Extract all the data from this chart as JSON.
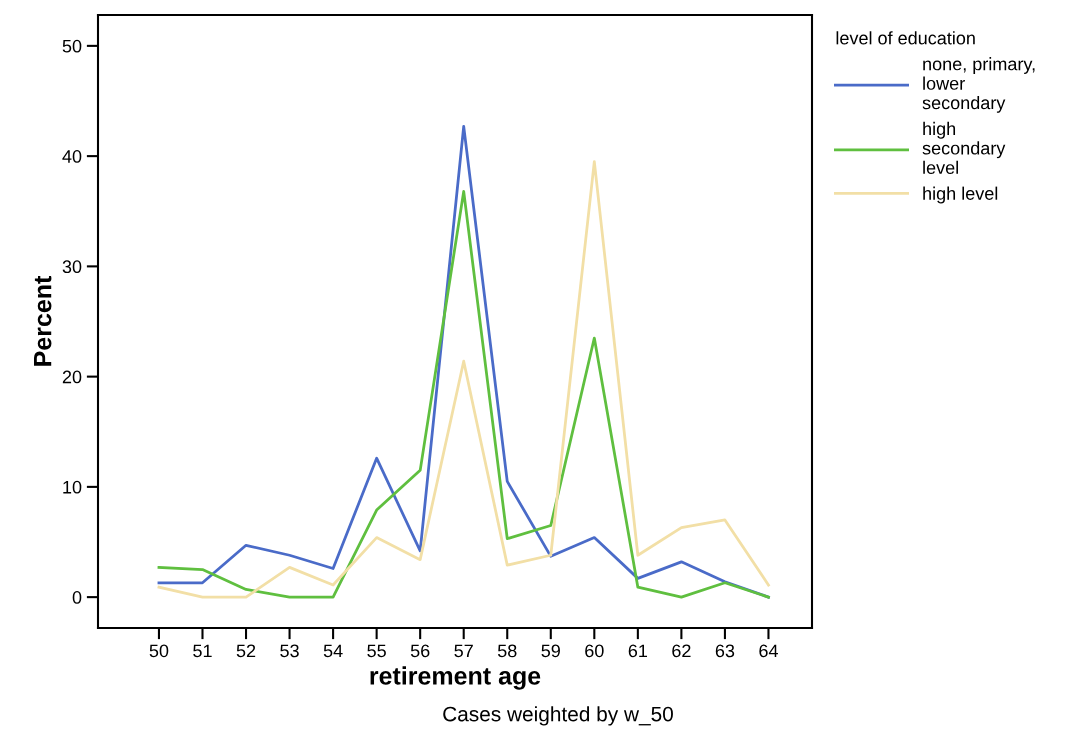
{
  "chart_data": {
    "type": "line",
    "xlabel": "retirement age",
    "ylabel": "Percent",
    "categories": [
      "50",
      "51",
      "52",
      "53",
      "54",
      "55",
      "56",
      "57",
      "58",
      "59",
      "60",
      "61",
      "62",
      "63",
      "64"
    ],
    "series": [
      {
        "name": "none, primary,\nlower\nsecondary",
        "color": "#4a6bc8",
        "values": [
          1.3,
          1.3,
          4.7,
          3.8,
          2.6,
          12.6,
          4.2,
          42.7,
          10.5,
          3.7,
          5.4,
          1.7,
          3.2,
          1.4,
          0
        ]
      },
      {
        "name": "high\nsecondary\nlevel",
        "color": "#5fbf3f",
        "values": [
          2.7,
          2.5,
          0.7,
          0,
          0,
          7.9,
          11.5,
          36.8,
          5.3,
          6.5,
          23.5,
          0.9,
          0,
          1.3,
          0
        ]
      },
      {
        "name": "high level",
        "color": "#f2dfa6",
        "values": [
          0.9,
          0,
          0,
          2.7,
          1.1,
          5.4,
          3.4,
          21.4,
          2.9,
          3.8,
          39.5,
          3.8,
          6.3,
          7.0,
          1.1
        ]
      }
    ],
    "legend_title": "level of education",
    "legend": "right",
    "ylim": [
      -2.8,
      52.8
    ],
    "yticks": [
      0,
      10,
      20,
      30,
      40,
      50
    ],
    "grid": false,
    "marker": "none",
    "line_style": "solid",
    "annotations": [
      "Cases weighted by w_50"
    ]
  }
}
